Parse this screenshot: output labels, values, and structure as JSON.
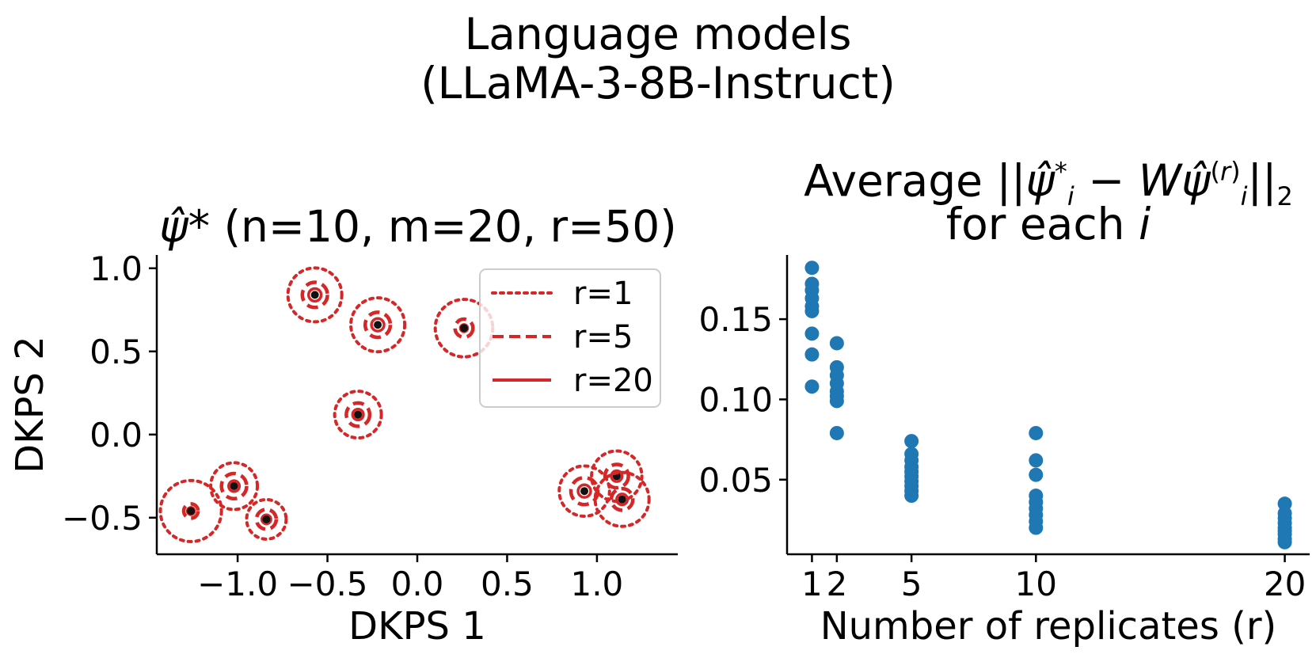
{
  "figure": {
    "suptitle_line1": "Language models",
    "suptitle_line2": "(LLaMA-3-8B-Instruct)"
  },
  "colors": {
    "red": "#d62728",
    "blue": "#1f77b4",
    "center_dot": "#111111",
    "axis": "#000000"
  },
  "chart_data": [
    {
      "type": "scatter",
      "title_symbol": "ψ̂*",
      "title_params": " (n=10, m=20, r=50)",
      "xlabel": "DKPS 1",
      "ylabel": "DKPS 2",
      "xlim": [
        -1.45,
        1.45
      ],
      "ylim": [
        -0.72,
        1.08
      ],
      "xticks": [
        -1.0,
        -0.5,
        0.0,
        0.5,
        1.0
      ],
      "xtick_labels": [
        "−1.0",
        "−0.5",
        "0.0",
        "0.5",
        "1.0"
      ],
      "yticks": [
        1.0,
        0.5,
        0.0,
        -0.5
      ],
      "ytick_labels": [
        "1.0",
        "0.5",
        "0.0",
        "−0.5"
      ],
      "legend": {
        "position": "top-right",
        "entries": [
          {
            "label": "r=1",
            "style": "dotted"
          },
          {
            "label": "r=5",
            "style": "dashed"
          },
          {
            "label": "r=20",
            "style": "solid"
          }
        ]
      },
      "points": [
        {
          "x": -0.57,
          "y": 0.84,
          "r1": 0.15,
          "r5": 0.07,
          "r20": 0.035
        },
        {
          "x": -0.22,
          "y": 0.66,
          "r1": 0.15,
          "r5": 0.07,
          "r20": 0.035
        },
        {
          "x": 0.26,
          "y": 0.64,
          "r1": 0.16,
          "r5": 0.05,
          "r20": 0.02
        },
        {
          "x": -0.33,
          "y": 0.12,
          "r1": 0.13,
          "r5": 0.065,
          "r20": 0.03
        },
        {
          "x": -1.26,
          "y": -0.46,
          "r1": 0.17,
          "r5": 0.04,
          "r20": 0.02
        },
        {
          "x": -1.02,
          "y": -0.31,
          "r1": 0.13,
          "r5": 0.07,
          "r20": 0.03
        },
        {
          "x": -0.84,
          "y": -0.51,
          "r1": 0.11,
          "r5": 0.055,
          "r20": 0.025
        },
        {
          "x": 0.93,
          "y": -0.34,
          "r1": 0.14,
          "r5": 0.075,
          "r20": 0.035
        },
        {
          "x": 1.11,
          "y": -0.25,
          "r1": 0.14,
          "r5": 0.065,
          "r20": 0.03
        },
        {
          "x": 1.14,
          "y": -0.39,
          "r1": 0.15,
          "r5": 0.06,
          "r20": 0.03
        }
      ]
    },
    {
      "type": "scatter",
      "title_line1_prefix": "Average ",
      "title_line2_prefix": "for each ",
      "title_line2_var": "i",
      "xlabel": "Number of replicates (r)",
      "xlim": [
        0,
        21
      ],
      "ylim": [
        0.0035,
        0.19
      ],
      "xticks": [
        1,
        2,
        5,
        10,
        20
      ],
      "xtick_labels": [
        "1",
        "2",
        "5",
        "10",
        "20"
      ],
      "yticks": [
        0.05,
        0.1,
        0.15
      ],
      "ytick_labels": [
        "0.05",
        "0.10",
        "0.15"
      ],
      "series": [
        {
          "r": 1,
          "values": [
            0.182,
            0.172,
            0.168,
            0.163,
            0.158,
            0.155,
            0.141,
            0.128,
            0.108
          ]
        },
        {
          "r": 2,
          "values": [
            0.135,
            0.12,
            0.115,
            0.11,
            0.105,
            0.102,
            0.099,
            0.079
          ]
        },
        {
          "r": 5,
          "values": [
            0.074,
            0.066,
            0.062,
            0.058,
            0.055,
            0.052,
            0.049,
            0.046,
            0.043,
            0.04
          ]
        },
        {
          "r": 10,
          "values": [
            0.079,
            0.062,
            0.053,
            0.04,
            0.036,
            0.032,
            0.028,
            0.024,
            0.02
          ]
        },
        {
          "r": 20,
          "values": [
            0.035,
            0.029,
            0.026,
            0.023,
            0.02,
            0.018,
            0.016,
            0.013,
            0.011
          ]
        }
      ]
    }
  ]
}
